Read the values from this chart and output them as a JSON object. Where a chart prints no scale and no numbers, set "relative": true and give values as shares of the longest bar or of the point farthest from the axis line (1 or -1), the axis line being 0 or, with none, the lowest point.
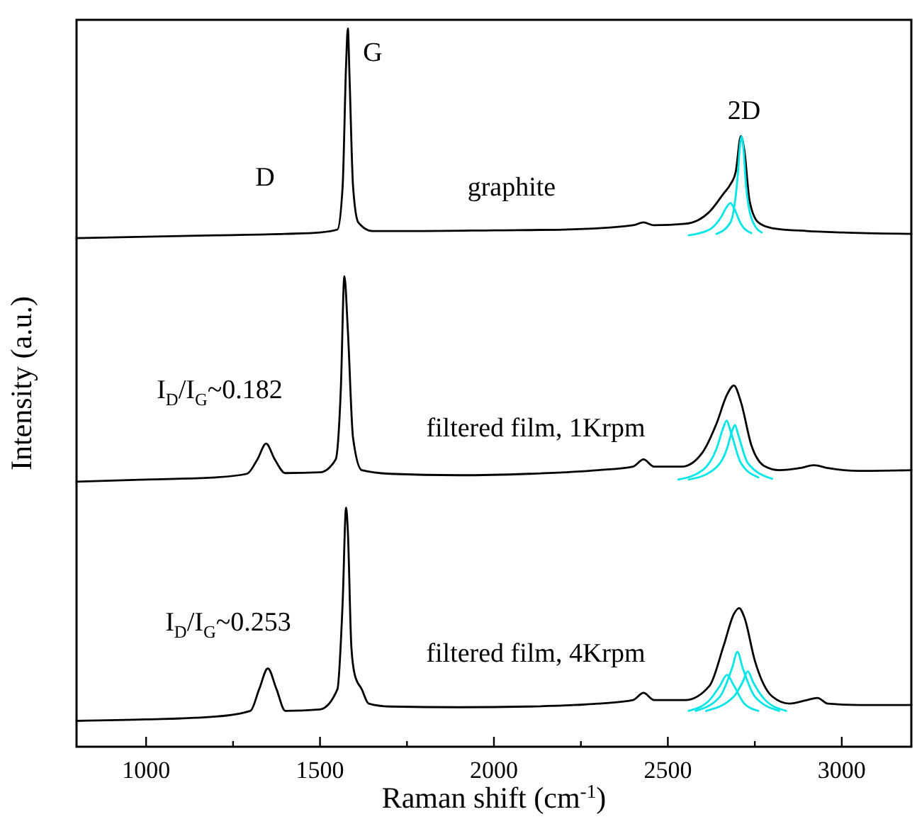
{
  "chart_data": {
    "type": "line",
    "relative": true,
    "xlabel": "Raman shift (cm$^{-1}$)",
    "ylabel": "Intensity (a.u.)",
    "xlim": [
      800,
      3200
    ],
    "xticks": [
      1000,
      {
        "value": 1250,
        "label": null
      },
      1500,
      {
        "value": 1750,
        "label": null
      },
      2000,
      {
        "value": 2250,
        "label": null
      },
      2500,
      {
        "value": 2750,
        "label": null
      },
      3000
    ],
    "tick_labels": "x",
    "line_style": "solid",
    "series": [
      {
        "color": "#000000",
        "x": [
          800,
          1000,
          1200,
          1400,
          1500,
          1550,
          1565,
          1575,
          1580,
          1585,
          1595,
          1610,
          1650,
          1800,
          2000,
          2200,
          2400,
          2430,
          2460,
          2550,
          2620,
          2660,
          2680,
          2695,
          2710,
          2720,
          2735,
          2760,
          2800,
          2900,
          3000,
          3200
        ],
        "values": [
          0.708,
          0.71,
          0.712,
          0.714,
          0.716,
          0.72,
          0.78,
          0.95,
          1.0,
          0.93,
          0.78,
          0.73,
          0.718,
          0.718,
          0.719,
          0.72,
          0.726,
          0.73,
          0.726,
          0.728,
          0.745,
          0.77,
          0.783,
          0.8,
          0.85,
          0.83,
          0.76,
          0.73,
          0.722,
          0.718,
          0.716,
          0.714
        ]
      },
      {
        "color": "#00e5e5",
        "x": [
          2560,
          2620,
          2650,
          2670,
          2680,
          2690,
          2710,
          2740
        ],
        "values": [
          0.712,
          0.72,
          0.735,
          0.752,
          0.757,
          0.75,
          0.728,
          0.715
        ]
      },
      {
        "color": "#00e5e5",
        "x": [
          2640,
          2680,
          2700,
          2708,
          2712,
          2716,
          2725,
          2745,
          2770
        ],
        "values": [
          0.714,
          0.73,
          0.79,
          0.84,
          0.85,
          0.84,
          0.78,
          0.73,
          0.716
        ]
      },
      {
        "color": "#000000",
        "x": [
          800,
          1000,
          1200,
          1290,
          1320,
          1345,
          1370,
          1400,
          1500,
          1545,
          1560,
          1570,
          1580,
          1595,
          1620,
          1700,
          1900,
          2100,
          2300,
          2400,
          2430,
          2460,
          2540,
          2600,
          2640,
          2670,
          2690,
          2710,
          2740,
          2780,
          2820,
          2880,
          2920,
          2960,
          3050,
          3200
        ],
        "values": [
          0.369,
          0.372,
          0.375,
          0.38,
          0.4,
          0.422,
          0.4,
          0.381,
          0.382,
          0.4,
          0.5,
          0.655,
          0.58,
          0.43,
          0.385,
          0.38,
          0.378,
          0.38,
          0.385,
          0.39,
          0.4,
          0.39,
          0.39,
          0.41,
          0.45,
          0.49,
          0.503,
          0.48,
          0.42,
          0.39,
          0.385,
          0.388,
          0.392,
          0.388,
          0.384,
          0.385
        ]
      },
      {
        "color": "#00e5e5",
        "x": [
          2530,
          2600,
          2640,
          2660,
          2669,
          2680,
          2710,
          2760
        ],
        "values": [
          0.372,
          0.385,
          0.415,
          0.445,
          0.454,
          0.44,
          0.395,
          0.375
        ]
      },
      {
        "color": "#00e5e5",
        "x": [
          2560,
          2630,
          2670,
          2685,
          2693,
          2702,
          2730,
          2800
        ],
        "values": [
          0.372,
          0.385,
          0.415,
          0.44,
          0.448,
          0.435,
          0.395,
          0.373
        ]
      },
      {
        "color": "#000000",
        "x": [
          800,
          1000,
          1200,
          1300,
          1325,
          1350,
          1375,
          1400,
          1500,
          1550,
          1565,
          1575,
          1580,
          1590,
          1600,
          1620,
          1640,
          1700,
          1900,
          2100,
          2300,
          2400,
          2430,
          2460,
          2550,
          2620,
          2660,
          2690,
          2705,
          2720,
          2750,
          2800,
          2850,
          2900,
          2930,
          2960,
          3050,
          3200
        ],
        "values": [
          0.036,
          0.038,
          0.042,
          0.05,
          0.08,
          0.109,
          0.08,
          0.05,
          0.052,
          0.08,
          0.2,
          0.333,
          0.3,
          0.14,
          0.1,
          0.08,
          0.06,
          0.056,
          0.055,
          0.056,
          0.06,
          0.065,
          0.075,
          0.065,
          0.065,
          0.085,
          0.14,
          0.185,
          0.193,
          0.18,
          0.12,
          0.07,
          0.06,
          0.065,
          0.068,
          0.06,
          0.058,
          0.058
        ]
      },
      {
        "color": "#00e5e5",
        "x": [
          2560,
          2620,
          2650,
          2670,
          2690,
          2720,
          2760
        ],
        "values": [
          0.05,
          0.065,
          0.085,
          0.1,
          0.085,
          0.06,
          0.05
        ]
      },
      {
        "color": "#00e5e5",
        "x": [
          2580,
          2650,
          2685,
          2700,
          2715,
          2750,
          2820
        ],
        "values": [
          0.05,
          0.07,
          0.11,
          0.132,
          0.11,
          0.07,
          0.05
        ]
      },
      {
        "color": "#00e5e5",
        "x": [
          2610,
          2690,
          2715,
          2730,
          2745,
          2780,
          2840
        ],
        "values": [
          0.05,
          0.07,
          0.09,
          0.105,
          0.09,
          0.065,
          0.05
        ]
      }
    ],
    "annotations": [
      "G",
      "D",
      "2D",
      "graphite",
      "I$_{D}$/I$_{G}$~0.182",
      "filtered film, 1Krpm",
      "I$_{D}$/I$_{G}$~0.253",
      "filtered film, 4Krpm"
    ]
  }
}
